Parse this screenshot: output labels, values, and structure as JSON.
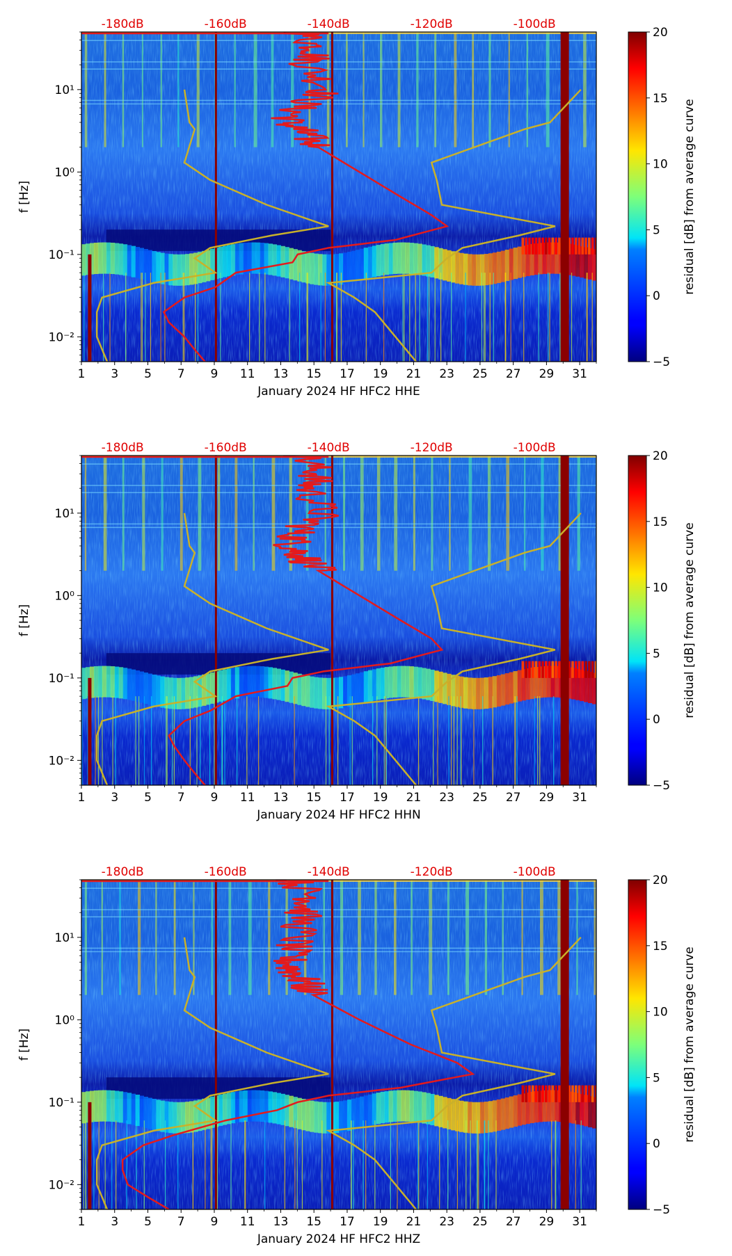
{
  "figure": {
    "type": "spectrogram-residual",
    "ylabel": "f [Hz]",
    "colorbar_label": "residual [dB] from average curve"
  },
  "chart_data": [
    {
      "type": "heatmap",
      "title": "",
      "xlabel": "January 2024 HF HFC2  HHE",
      "ylabel": "f [Hz]",
      "x_ticks": [
        "1",
        "3",
        "5",
        "7",
        "9",
        "11",
        "13",
        "15",
        "17",
        "19",
        "21",
        "23",
        "25",
        "27",
        "29",
        "31"
      ],
      "y_ticks": [
        "10⁻²",
        "10⁻¹",
        "10⁰",
        "10¹"
      ],
      "xlim": [
        1,
        32
      ],
      "ylim_hz": [
        0.005,
        50
      ],
      "top_db_ticks": [
        "-180dB",
        "-160dB",
        "-140dB",
        "-120dB",
        "-100dB"
      ],
      "db_axis_range": [
        -188,
        -88
      ],
      "colorbar": {
        "label": "residual [dB] from average curve",
        "range": [
          -5,
          20
        ],
        "ticks": [
          "−5",
          "0",
          "5",
          "10",
          "15",
          "20"
        ],
        "colormap": "jet"
      },
      "average_curve_db": {
        "color": "#e41a1c",
        "freq_hz": [
          50,
          30,
          20,
          10,
          6,
          4,
          3,
          2,
          1,
          0.5,
          0.3,
          0.22,
          0.15,
          0.12,
          0.1,
          0.08,
          0.06,
          0.04,
          0.03,
          0.02,
          0.015,
          0.01,
          0.007,
          0.005
        ],
        "db": [
          -145,
          -142,
          -144,
          -140,
          -146,
          -148,
          -145,
          -142,
          -134,
          -126,
          -120,
          -117,
          -127,
          -140,
          -146,
          -147,
          -158,
          -162,
          -168,
          -172,
          -171,
          -168,
          -166,
          -164
        ]
      },
      "nlnm_nhnm_db": {
        "color": "#c9b12a",
        "freq_hz": [
          10,
          4,
          3.3,
          1.3,
          0.8,
          0.4,
          0.22,
          0.17,
          0.12,
          0.09,
          0.06,
          0.045,
          0.03,
          0.02,
          0.01,
          0.005
        ],
        "low_db": [
          -168,
          -167,
          -166,
          -168,
          -163,
          -152,
          -140,
          -151,
          -163,
          -166,
          -162,
          -174,
          -184,
          -185,
          -185,
          -183
        ],
        "high_db": [
          -91,
          -97,
          -102,
          -120,
          -119,
          -118,
          -96,
          -103,
          -114,
          -117,
          -120,
          -140,
          -135,
          -131,
          -127,
          -123
        ]
      },
      "vertical_bands_day": [
        1.5,
        9.1,
        16.1,
        30.1
      ]
    },
    {
      "type": "heatmap",
      "title": "",
      "xlabel": "January 2024 HF HFC2  HHN",
      "ylabel": "f [Hz]",
      "x_ticks": [
        "1",
        "3",
        "5",
        "7",
        "9",
        "11",
        "13",
        "15",
        "17",
        "19",
        "21",
        "23",
        "25",
        "27",
        "29",
        "31"
      ],
      "y_ticks": [
        "10⁻²",
        "10⁻¹",
        "10⁰",
        "10¹"
      ],
      "xlim": [
        1,
        32
      ],
      "ylim_hz": [
        0.005,
        50
      ],
      "top_db_ticks": [
        "-180dB",
        "-160dB",
        "-140dB",
        "-120dB",
        "-100dB"
      ],
      "db_axis_range": [
        -188,
        -88
      ],
      "colorbar": {
        "label": "residual [dB] from average curve",
        "range": [
          -5,
          20
        ],
        "ticks": [
          "−5",
          "0",
          "5",
          "10",
          "15",
          "20"
        ],
        "colormap": "jet"
      },
      "average_curve_db": {
        "color": "#e41a1c",
        "freq_hz": [
          50,
          30,
          20,
          10,
          6,
          4,
          3,
          2,
          1,
          0.5,
          0.3,
          0.22,
          0.15,
          0.12,
          0.1,
          0.08,
          0.06,
          0.04,
          0.03,
          0.02,
          0.015,
          0.01,
          0.007,
          0.005
        ],
        "db": [
          -145,
          -142,
          -144,
          -141,
          -146,
          -147,
          -145,
          -142,
          -134,
          -126,
          -120,
          -118,
          -128,
          -141,
          -147,
          -148,
          -158,
          -163,
          -168,
          -171,
          -170,
          -168,
          -166,
          -164
        ]
      },
      "nlnm_nhnm_db": {
        "color": "#c9b12a",
        "freq_hz": [
          10,
          4,
          3.3,
          1.3,
          0.8,
          0.4,
          0.22,
          0.17,
          0.12,
          0.09,
          0.06,
          0.045,
          0.03,
          0.02,
          0.01,
          0.005
        ],
        "low_db": [
          -168,
          -167,
          -166,
          -168,
          -163,
          -152,
          -140,
          -151,
          -163,
          -166,
          -162,
          -174,
          -184,
          -185,
          -185,
          -183
        ],
        "high_db": [
          -91,
          -97,
          -102,
          -120,
          -119,
          -118,
          -96,
          -103,
          -114,
          -117,
          -120,
          -140,
          -135,
          -131,
          -127,
          -123
        ]
      },
      "vertical_bands_day": [
        1.5,
        9.1,
        16.1,
        30.1
      ]
    },
    {
      "type": "heatmap",
      "title": "",
      "xlabel": "January 2024 HF HFC2  HHZ",
      "ylabel": "f [Hz]",
      "x_ticks": [
        "1",
        "3",
        "5",
        "7",
        "9",
        "11",
        "13",
        "15",
        "17",
        "19",
        "21",
        "23",
        "25",
        "27",
        "29",
        "31"
      ],
      "y_ticks": [
        "10⁻²",
        "10⁻¹",
        "10⁰",
        "10¹"
      ],
      "xlim": [
        1,
        32
      ],
      "ylim_hz": [
        0.005,
        50
      ],
      "top_db_ticks": [
        "-180dB",
        "-160dB",
        "-140dB",
        "-120dB",
        "-100dB"
      ],
      "db_axis_range": [
        -188,
        -88
      ],
      "colorbar": {
        "label": "residual [dB] from average curve",
        "range": [
          -5,
          20
        ],
        "ticks": [
          "−5",
          "0",
          "5",
          "10",
          "15",
          "20"
        ],
        "colormap": "jet"
      },
      "average_curve_db": {
        "color": "#e41a1c",
        "freq_hz": [
          50,
          30,
          20,
          10,
          6,
          4,
          3,
          2,
          1,
          0.5,
          0.3,
          0.22,
          0.15,
          0.12,
          0.1,
          0.08,
          0.06,
          0.04,
          0.03,
          0.02,
          0.015,
          0.01,
          0.007,
          0.005
        ],
        "db": [
          -147,
          -143,
          -145,
          -146,
          -148,
          -147,
          -145,
          -143,
          -134,
          -124,
          -115,
          -112,
          -126,
          -140,
          -146,
          -150,
          -160,
          -170,
          -176,
          -180,
          -180,
          -179,
          -175,
          -171
        ]
      },
      "nlnm_nhnm_db": {
        "color": "#c9b12a",
        "freq_hz": [
          10,
          4,
          3.3,
          1.3,
          0.8,
          0.4,
          0.22,
          0.17,
          0.12,
          0.09,
          0.06,
          0.045,
          0.03,
          0.02,
          0.01,
          0.005
        ],
        "low_db": [
          -168,
          -167,
          -166,
          -168,
          -163,
          -152,
          -140,
          -151,
          -163,
          -166,
          -162,
          -174,
          -184,
          -185,
          -185,
          -183
        ],
        "high_db": [
          -91,
          -97,
          -102,
          -120,
          -119,
          -118,
          -96,
          -103,
          -114,
          -117,
          -120,
          -140,
          -135,
          -131,
          -127,
          -123
        ]
      },
      "vertical_bands_day": [
        1.5,
        9.1,
        16.1,
        30.1
      ]
    }
  ]
}
